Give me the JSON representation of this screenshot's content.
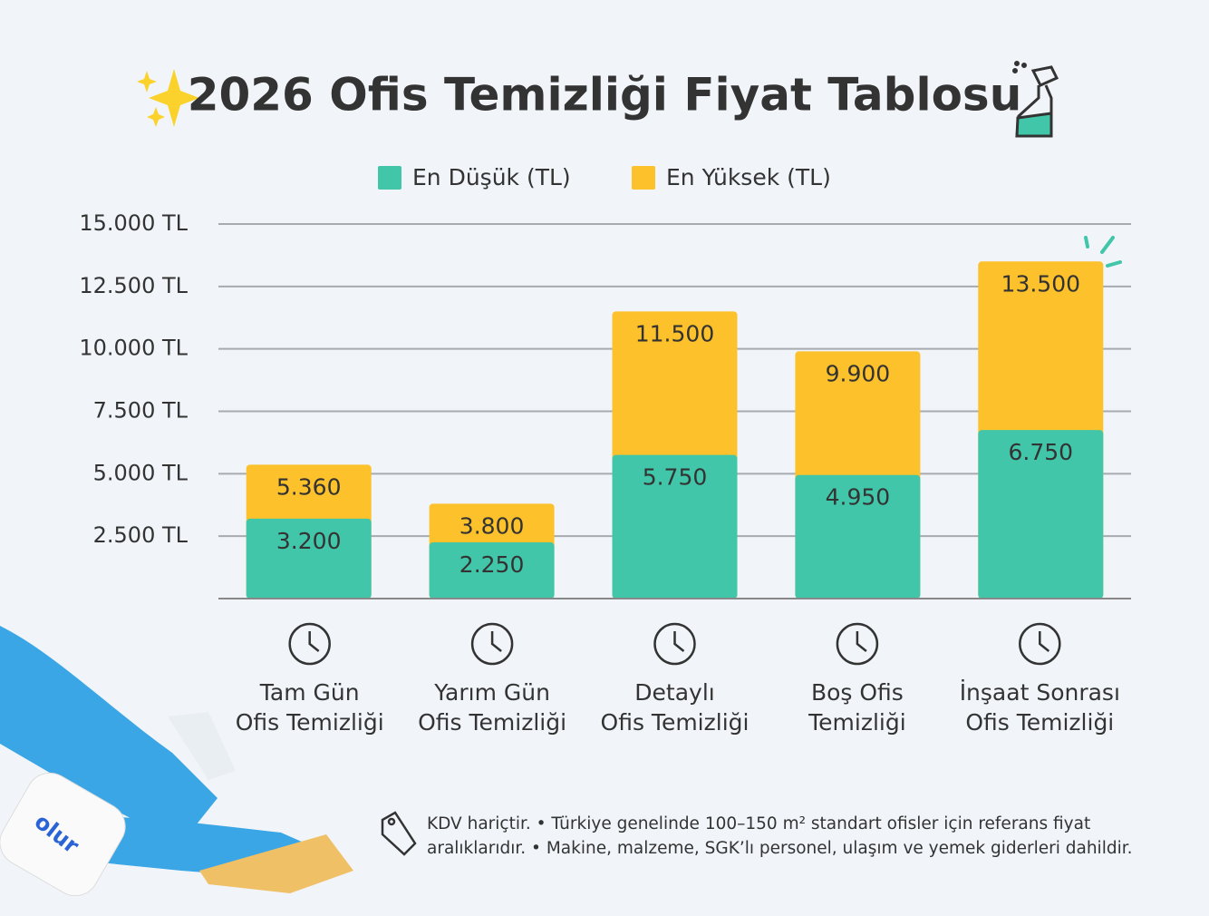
{
  "chart_data": {
    "type": "bar",
    "title": "2026 Ofis Temizliği Fiyat Tablosu",
    "categories": [
      [
        "Tam Gün",
        "Ofis Temizliği"
      ],
      [
        "Yarım Gün",
        "Ofis Temizliği"
      ],
      [
        "Detaylı",
        "Ofis Temizliği"
      ],
      [
        "Boş Ofis",
        "Temizliği"
      ],
      [
        "İnşaat Sonrası",
        "Ofis Temizliği"
      ]
    ],
    "series": [
      {
        "name": "En Düşük (TL)",
        "color": "#42c6a9",
        "values": [
          3200,
          2250,
          5750,
          4950,
          6750
        ],
        "value_labels": [
          "3.200",
          "2.250",
          "5.750",
          "4.950",
          "6.750"
        ]
      },
      {
        "name": "En Yüksek (TL)",
        "color": "#fcc12b",
        "values": [
          5360,
          3800,
          11500,
          9900,
          13500
        ],
        "value_labels": [
          "5.360",
          "3.800",
          "11.500",
          "9.900",
          "13.500"
        ]
      }
    ],
    "ylim": [
      0,
      15000
    ],
    "yticks": [
      {
        "value": 2500,
        "label": "2.500 TL"
      },
      {
        "value": 5000,
        "label": "5.000 TL"
      },
      {
        "value": 7500,
        "label": "7.500 TL"
      },
      {
        "value": 10000,
        "label": "10.000 TL"
      },
      {
        "value": 12500,
        "label": "12.500 TL"
      },
      {
        "value": 15000,
        "label": "15.000 TL"
      }
    ],
    "grid": true,
    "legend": "top",
    "footnote": [
      "KDV hariçtir. • Türkiye genelinde 100–150 m² standart ofisler için referans fiyat",
      "aralıklarıdır. • Makine, malzeme, SGK’lı personel, ulaşım ve yemek giderleri dahildir."
    ],
    "brand": "olur"
  }
}
